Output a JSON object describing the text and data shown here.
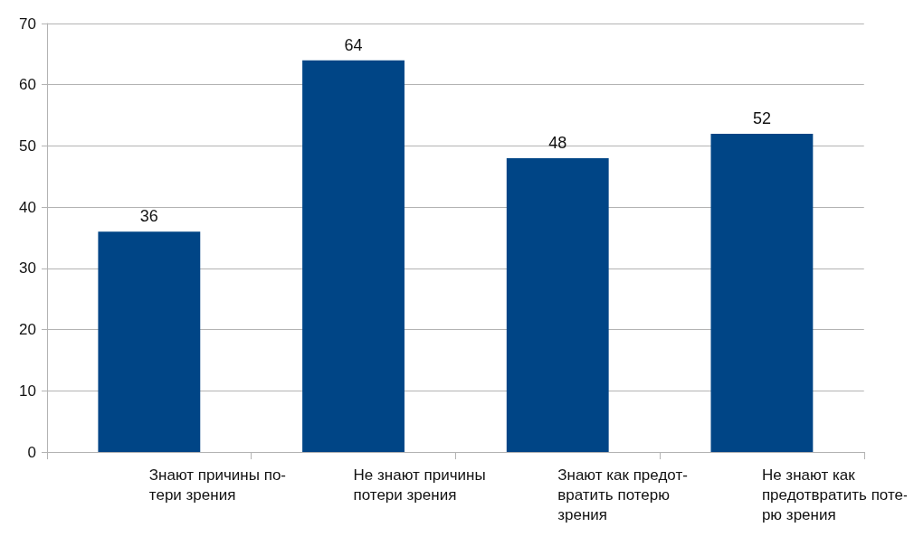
{
  "chart_data": {
    "type": "bar",
    "categories": [
      "Знают причины по-\nтери зрения",
      "Не знают причины\nпотери зрения",
      "Знают как предот-\nвратить потерю\nзрения",
      "Не знают как\nпредотвратить поте-\nрю зрения"
    ],
    "values": [
      36,
      64,
      48,
      52
    ],
    "color": "#004586",
    "ylim": [
      0,
      70
    ],
    "yticks": [
      0,
      10,
      20,
      30,
      40,
      50,
      60,
      70
    ],
    "grid": "y",
    "data_labels": true
  }
}
